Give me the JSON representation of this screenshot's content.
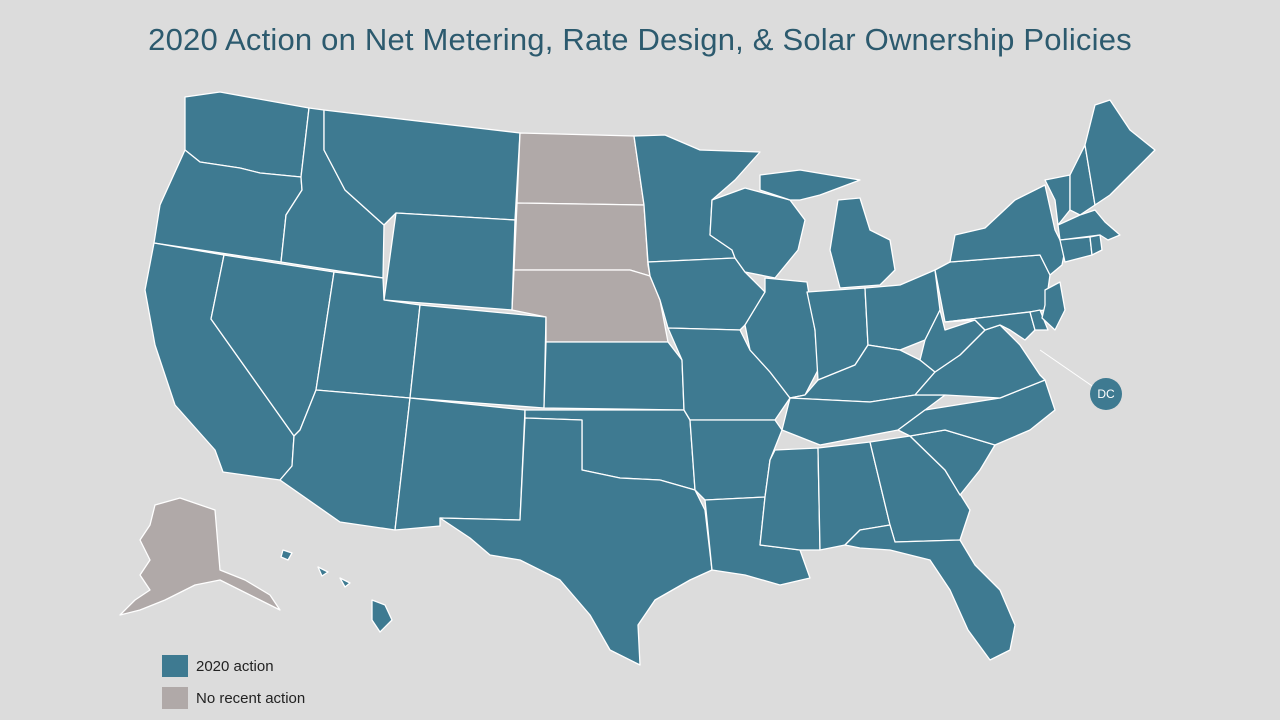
{
  "title": "2020 Action on Net Metering, Rate Design, & Solar Ownership Policies",
  "colors": {
    "action": "#3e7a91",
    "no_action": "#b0a9a8",
    "background": "#dcdcdc",
    "title": "#2c5a6e"
  },
  "legend": [
    {
      "label": "2020 action",
      "status": "action"
    },
    {
      "label": "No recent action",
      "status": "no_action"
    }
  ],
  "dc": {
    "label": "DC",
    "status": "action"
  },
  "states": {
    "WA": "action",
    "OR": "action",
    "CA": "action",
    "ID": "action",
    "NV": "action",
    "MT": "action",
    "WY": "action",
    "UT": "action",
    "AZ": "action",
    "CO": "action",
    "NM": "action",
    "ND": "no_action",
    "SD": "no_action",
    "NE": "no_action",
    "KS": "action",
    "OK": "action",
    "TX": "action",
    "MN": "action",
    "IA": "action",
    "MO": "action",
    "AR": "action",
    "LA": "action",
    "WI": "action",
    "IL": "action",
    "MS": "action",
    "MI": "action",
    "IN": "action",
    "KY": "action",
    "TN": "action",
    "AL": "action",
    "OH": "action",
    "GA": "action",
    "FL": "action",
    "SC": "action",
    "NC": "action",
    "VA": "action",
    "WV": "action",
    "PA": "action",
    "NY": "action",
    "VT": "action",
    "NH": "action",
    "ME": "action",
    "MA": "action",
    "CT": "action",
    "RI": "action",
    "NJ": "action",
    "DE": "action",
    "MD": "action",
    "AK": "no_action",
    "HI": "action"
  }
}
